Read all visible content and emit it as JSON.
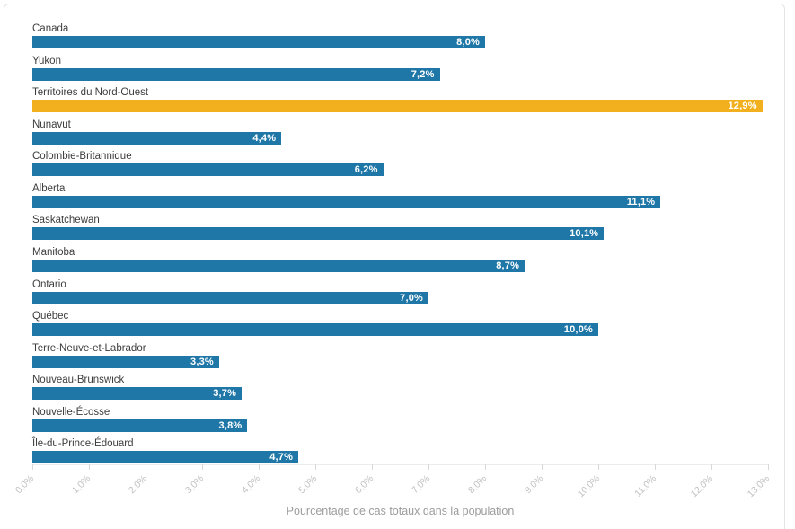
{
  "chart_data": {
    "type": "bar",
    "orientation": "horizontal",
    "title": "",
    "xlabel": "Pourcentage de cas totaux dans la population",
    "ylabel": "",
    "xlim": [
      0,
      13
    ],
    "grid": "off",
    "legend": "none",
    "categories": [
      "Canada",
      "Yukon",
      "Territoires du Nord-Ouest",
      "Nunavut",
      "Colombie-Britannique",
      "Alberta",
      "Saskatchewan",
      "Manitoba",
      "Ontario",
      "Québec",
      "Terre-Neuve-et-Labrador",
      "Nouveau-Brunswick",
      "Nouvelle-Écosse",
      "Île-du-Prince-Édouard"
    ],
    "values": [
      8.0,
      7.2,
      12.9,
      4.4,
      6.2,
      11.1,
      10.1,
      8.7,
      7.0,
      10.0,
      3.3,
      3.7,
      3.8,
      4.7
    ],
    "value_labels": [
      "8,0%",
      "7,2%",
      "12,9%",
      "4,4%",
      "6,2%",
      "11,1%",
      "10,1%",
      "8,7%",
      "7,0%",
      "10,0%",
      "3,3%",
      "3,7%",
      "3,8%",
      "4,7%"
    ],
    "highlight_index": 2,
    "bar_color": "#1f77a8",
    "highlight_color": "#f2b01e",
    "x_ticks": [
      "0,0%",
      "1,0%",
      "2,0%",
      "3,0%",
      "4,0%",
      "5,0%",
      "6,0%",
      "7,0%",
      "8,0%",
      "9,0%",
      "10,0%",
      "11,0%",
      "12,0%",
      "13,0%"
    ]
  }
}
